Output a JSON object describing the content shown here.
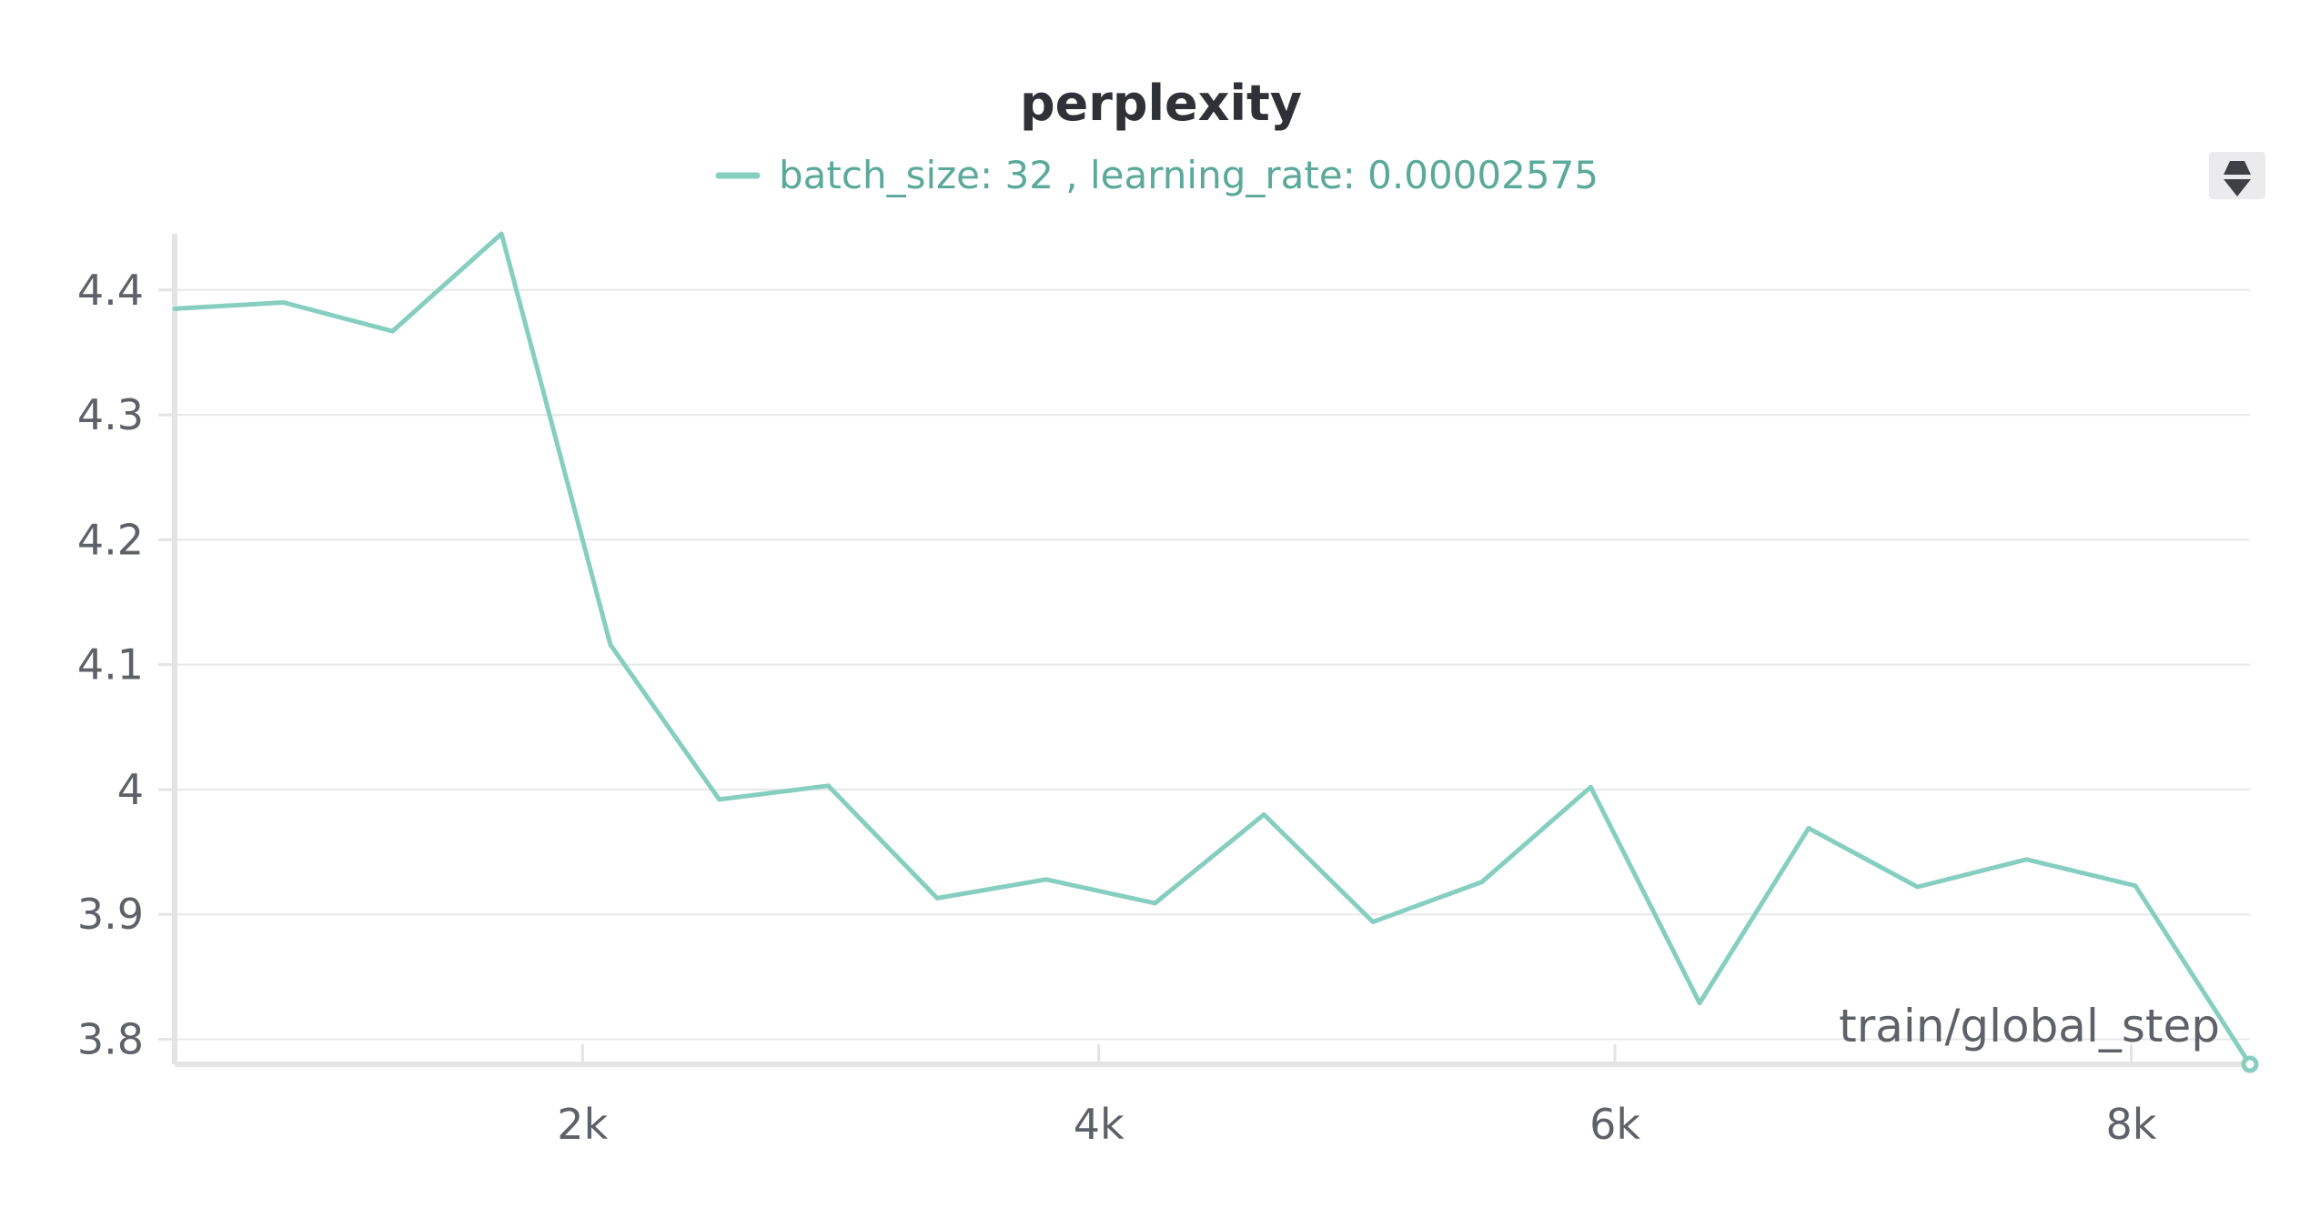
{
  "chart_data": {
    "type": "line",
    "title": "perplexity",
    "xlabel": "train/global_step",
    "ylabel": "",
    "legend": {
      "placement": "top-center",
      "entries": [
        "batch_size: 32 , learning_rate: 0.00002575"
      ]
    },
    "xlim": [
      420,
      8460
    ],
    "ylim": [
      3.78,
      4.445
    ],
    "x_ticks": [
      {
        "value": 2000,
        "label": "2k"
      },
      {
        "value": 4000,
        "label": "4k"
      },
      {
        "value": 6000,
        "label": "6k"
      },
      {
        "value": 8000,
        "label": "8k"
      }
    ],
    "y_ticks": [
      {
        "value": 3.8,
        "label": "3.8"
      },
      {
        "value": 3.9,
        "label": "3.9"
      },
      {
        "value": 4.0,
        "label": "4"
      },
      {
        "value": 4.1,
        "label": "4.1"
      },
      {
        "value": 4.2,
        "label": "4.2"
      },
      {
        "value": 4.3,
        "label": "4.3"
      },
      {
        "value": 4.4,
        "label": "4.4"
      }
    ],
    "grid": true,
    "series": [
      {
        "name": "batch_size: 32 , learning_rate: 0.00002575",
        "color": "#86cfc0",
        "x": [
          420,
          842,
          1264,
          1686,
          2108,
          2530,
          2952,
          3374,
          3796,
          4218,
          4640,
          5062,
          5484,
          5906,
          6328,
          6750,
          7172,
          7594,
          8016,
          8460
        ],
        "y": [
          4.385,
          4.39,
          4.367,
          4.445,
          4.116,
          3.992,
          4.003,
          3.913,
          3.928,
          3.909,
          3.98,
          3.894,
          3.926,
          4.002,
          3.829,
          3.969,
          3.922,
          3.944,
          3.923,
          3.78
        ]
      }
    ]
  },
  "colors": {
    "series": "#86cfc0",
    "legend_text": "#5aa99a",
    "title": "#2f3136",
    "tick_text": "#5f6168",
    "grid": "#e8e8ea",
    "axis": "#e4e4e6"
  },
  "controls": {
    "legend_scroll_icon": "up-down-arrows-icon"
  }
}
